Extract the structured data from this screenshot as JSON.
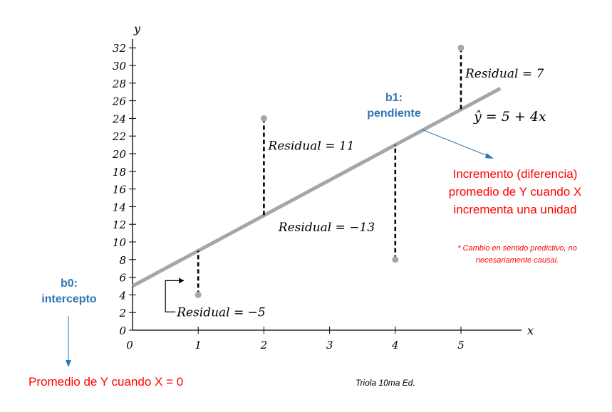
{
  "chart_data": {
    "type": "scatter",
    "xlabel": "x",
    "ylabel": "y",
    "xlim": [
      0,
      5.6
    ],
    "ylim": [
      0,
      33
    ],
    "x_ticks": [
      "0",
      "1",
      "2",
      "3",
      "4",
      "5"
    ],
    "y_ticks": [
      "0",
      "2",
      "4",
      "6",
      "8",
      "10",
      "12",
      "14",
      "16",
      "18",
      "20",
      "22",
      "24",
      "26",
      "28",
      "30",
      "32"
    ],
    "points": [
      {
        "x": 1,
        "y": 4
      },
      {
        "x": 2,
        "y": 24
      },
      {
        "x": 4,
        "y": 8
      },
      {
        "x": 5,
        "y": 32
      }
    ],
    "regression": {
      "intercept": 5,
      "slope": 4,
      "equation_label": "ŷ = 5 + 4x"
    },
    "residual_labels": [
      {
        "x": 1,
        "text": "Residual = −5"
      },
      {
        "x": 2,
        "text": "Residual = 11"
      },
      {
        "x": 4,
        "text": "Residual = −13"
      },
      {
        "x": 5,
        "text": "Residual = 7"
      }
    ],
    "colors": {
      "line": "#a6a6a6",
      "points": "#a6a6a6",
      "axis": "#000000",
      "blue": "#2e75b6",
      "red": "#ff0000"
    }
  },
  "annotations": {
    "b1_title": "b1:",
    "b1_sub": "pendiente",
    "b1_desc_1": "Incremento (diferencia)",
    "b1_desc_2": "promedio de Y cuando X",
    "b1_desc_3": "incrementa una unidad",
    "note_1": "* Cambio en sentido predictivo, no",
    "note_2": "necesariamente causal.",
    "b0_title": "b0:",
    "b0_sub": "intercepto",
    "b0_desc": "Promedio de Y cuando X = 0",
    "credit": "Triola 10ma Ed."
  }
}
